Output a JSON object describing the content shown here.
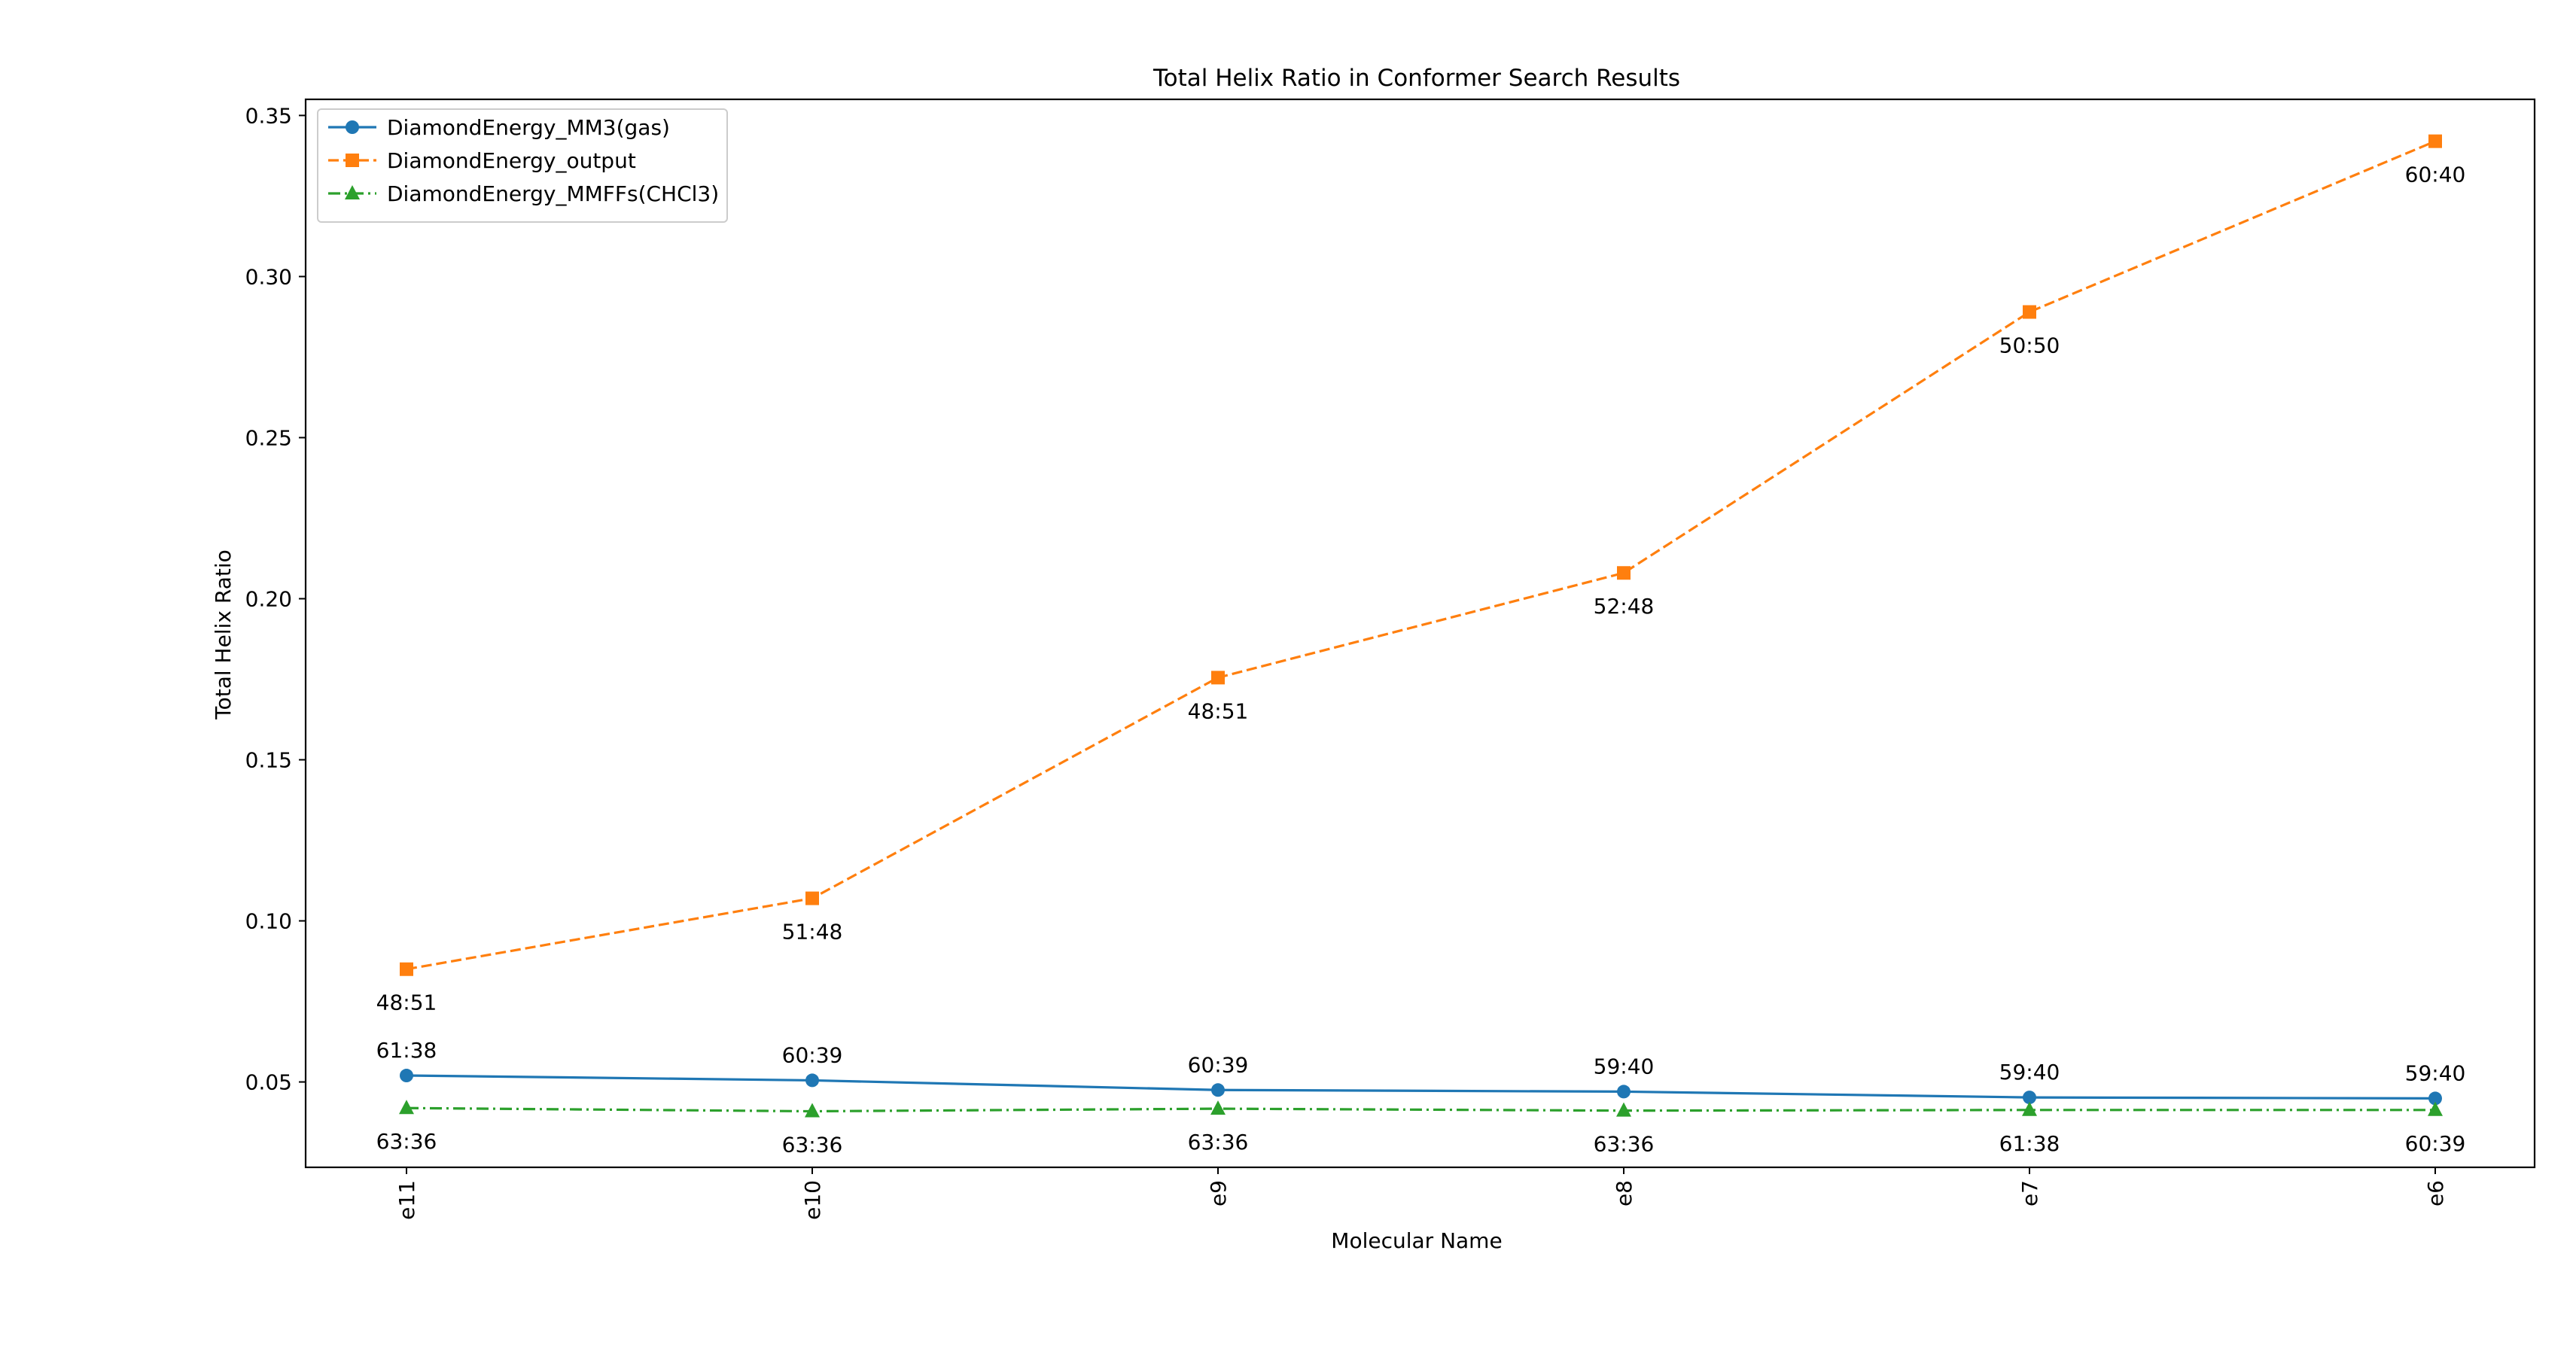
{
  "chart_data": {
    "type": "line",
    "title": "Total Helix Ratio in Conformer Search Results",
    "xlabel": "Molecular Name",
    "ylabel": "Total Helix Ratio",
    "categories": [
      "e11",
      "e10",
      "e9",
      "e8",
      "e7",
      "e6"
    ],
    "ylim": [
      0.0235,
      0.355
    ],
    "yticks": [
      0.05,
      0.1,
      0.15,
      0.2,
      0.25,
      0.3,
      0.35
    ],
    "ytick_labels": [
      "0.05",
      "0.10",
      "0.15",
      "0.20",
      "0.25",
      "0.30",
      "0.35"
    ],
    "grid": false,
    "legend_position": "top-left",
    "series": [
      {
        "name": "DiamondEnergy_MM3(gas)",
        "color": "#1f77b4",
        "line_style": "solid",
        "marker": "circle",
        "values": [
          0.052,
          0.0505,
          0.0475,
          0.047,
          0.0452,
          0.0449
        ],
        "labels": [
          "61:38",
          "60:39",
          "60:39",
          "59:40",
          "59:40",
          "59:40"
        ],
        "label_placement": "above"
      },
      {
        "name": "DiamondEnergy_output",
        "color": "#ff7f0e",
        "line_style": "dashed",
        "marker": "square",
        "values": [
          0.085,
          0.107,
          0.1755,
          0.208,
          0.289,
          0.342
        ],
        "labels": [
          "48:51",
          "51:48",
          "48:51",
          "52:48",
          "50:50",
          "60:40"
        ],
        "label_placement": "below"
      },
      {
        "name": "DiamondEnergy_MMFFs(CHCl3)",
        "color": "#2ca02c",
        "line_style": "dashdot",
        "marker": "triangle",
        "values": [
          0.0419,
          0.0409,
          0.0417,
          0.0411,
          0.0413,
          0.0413
        ],
        "labels": [
          "63:36",
          "63:36",
          "63:36",
          "63:36",
          "61:38",
          "60:39"
        ],
        "label_placement": "below"
      }
    ]
  }
}
